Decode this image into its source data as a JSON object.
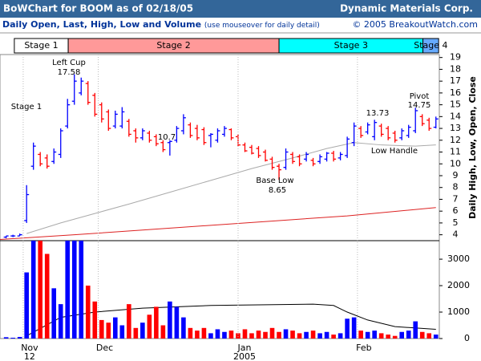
{
  "header": {
    "title": "BoWChart for BOOM as of 02/18/05",
    "company": "Dynamic Materials Corp.",
    "subtitle": "Daily Open, Last, High, Low and Volume",
    "subtitle_note": "(use mouseover for daily detail)",
    "copyright": "© 2005 BreakoutWatch.com"
  },
  "stages": [
    {
      "label": "Stage 1",
      "from": 1.2,
      "to": 9.1,
      "color": "#ffffff"
    },
    {
      "label": "Stage 2",
      "from": 9.1,
      "to": 40,
      "color": "#ff9999"
    },
    {
      "label": "Stage 3",
      "from": 40,
      "to": 61.1,
      "color": "#00ffff"
    },
    {
      "label": "Stage 4",
      "from": 61.1,
      "to": 63.4,
      "color": "#66aaff"
    }
  ],
  "chart_data": [
    {
      "type": "ohlc",
      "y_label": "Daily High, Low, Open, Close",
      "up_color": "#0000ff",
      "down_color": "#ff0000",
      "xlim": [
        -0.9,
        63.5
      ],
      "xticks": [
        {
          "value": 2.5,
          "label": "Nov",
          "sublabel": "12"
        },
        {
          "value": 13.5,
          "label": "Dec"
        },
        {
          "value": 34,
          "label": "Jan",
          "sublabel": "2005"
        },
        {
          "value": 51.5,
          "label": "Feb"
        }
      ],
      "ylim": [
        3.5,
        19.25
      ],
      "yticks": [
        4,
        5,
        6,
        7,
        8,
        9,
        10,
        11,
        12,
        13,
        14,
        15,
        16,
        17,
        18,
        19
      ],
      "high": [
        3.9,
        4.0,
        4.1,
        8.2,
        11.8,
        11.0,
        10.8,
        11.3,
        13.0,
        15.5,
        17.58,
        17.3,
        17.0,
        16.0,
        15.2,
        14.6,
        14.5,
        14.8,
        13.8,
        13.0,
        13.0,
        12.8,
        12.5,
        12.0,
        12.0,
        13.2,
        14.2,
        13.5,
        13.3,
        13.1,
        12.6,
        13.0,
        13.2,
        13.0,
        12.5,
        11.8,
        11.6,
        11.5,
        11.2,
        10.6,
        10.0,
        11.3,
        11.0,
        10.8,
        11.0,
        10.5,
        10.8,
        11.0,
        11.1,
        11.0,
        12.3,
        13.5,
        13.2,
        13.5,
        13.73,
        13.4,
        13.2,
        12.8,
        13.0,
        13.3,
        14.75,
        14.2,
        13.9,
        14.0
      ],
      "low": [
        3.7,
        3.8,
        3.9,
        5.0,
        9.5,
        9.8,
        9.6,
        10.0,
        10.5,
        13.0,
        15.0,
        15.8,
        15.0,
        14.0,
        13.5,
        12.8,
        13.0,
        13.0,
        12.3,
        11.8,
        12.0,
        11.8,
        11.5,
        11.0,
        10.7,
        11.8,
        12.5,
        12.2,
        12.0,
        11.6,
        11.4,
        11.8,
        12.3,
        12.0,
        11.5,
        11.0,
        10.8,
        10.5,
        10.2,
        9.5,
        8.65,
        9.5,
        10.0,
        9.8,
        10.2,
        9.8,
        10.0,
        10.2,
        10.2,
        10.3,
        10.5,
        11.5,
        12.2,
        12.5,
        12.0,
        12.3,
        12.0,
        11.8,
        12.0,
        12.2,
        12.6,
        13.2,
        12.8,
        13.0
      ],
      "open": [
        3.8,
        3.9,
        3.9,
        5.2,
        9.8,
        10.8,
        10.5,
        10.2,
        10.8,
        13.2,
        15.3,
        16.0,
        16.8,
        15.8,
        15.0,
        14.4,
        13.2,
        13.2,
        13.6,
        12.8,
        12.2,
        12.6,
        12.3,
        11.8,
        11.8,
        12.0,
        12.8,
        13.3,
        13.0,
        12.9,
        12.4,
        12.0,
        12.5,
        12.9,
        12.3,
        11.6,
        11.4,
        11.3,
        11.0,
        10.4,
        9.8,
        9.7,
        10.8,
        10.6,
        10.4,
        10.3,
        10.2,
        10.4,
        10.9,
        10.5,
        10.7,
        11.8,
        13.0,
        12.7,
        12.3,
        13.2,
        13.0,
        12.6,
        12.2,
        12.4,
        12.8,
        14.0,
        13.7,
        13.1
      ],
      "close": [
        3.9,
        3.9,
        4.0,
        7.4,
        11.5,
        10.0,
        9.8,
        11.0,
        12.8,
        15.0,
        17.0,
        17.0,
        15.2,
        14.2,
        13.8,
        13.0,
        14.2,
        14.4,
        12.5,
        12.2,
        12.8,
        12.0,
        11.7,
        11.2,
        11.9,
        13.0,
        13.9,
        12.4,
        12.2,
        11.8,
        12.5,
        12.8,
        13.0,
        12.2,
        11.6,
        11.1,
        10.9,
        10.7,
        10.3,
        9.7,
        9.5,
        11.0,
        10.2,
        10.0,
        10.8,
        10.0,
        10.6,
        10.9,
        10.4,
        10.8,
        12.1,
        13.2,
        12.4,
        13.3,
        13.5,
        12.5,
        12.2,
        12.0,
        12.8,
        13.1,
        14.5,
        13.4,
        13.0,
        13.8
      ],
      "lines": [
        {
          "color": "#aaaaaa",
          "x": [
            3,
            8,
            13,
            18,
            24,
            30,
            36,
            42,
            47,
            51,
            55,
            60,
            63
          ],
          "values": [
            4.1,
            5.0,
            5.8,
            6.6,
            7.6,
            8.6,
            9.6,
            10.5,
            11.3,
            11.8,
            11.6,
            11.5,
            11.6
          ]
        },
        {
          "color": "#dd2222",
          "x": [
            -0.9,
            10,
            20,
            30,
            40,
            50,
            63
          ],
          "values": [
            3.6,
            4.0,
            4.4,
            4.8,
            5.2,
            5.6,
            6.3
          ]
        }
      ],
      "annotations": [
        "Stage 1",
        "Left Cup",
        "17.58",
        "10.7",
        "Base Low",
        "8.65",
        "13.73",
        "Pivot",
        "14.75",
        "Low Handle"
      ]
    },
    {
      "type": "volume",
      "ylim": [
        0,
        3700
      ],
      "yticks": [
        0,
        1000,
        2000,
        3000
      ],
      "values": [
        50,
        30,
        60,
        2500,
        3700,
        3700,
        3200,
        1900,
        1300,
        3700,
        3700,
        3700,
        2000,
        1400,
        700,
        600,
        800,
        500,
        1300,
        400,
        600,
        900,
        1200,
        500,
        1400,
        1200,
        800,
        400,
        300,
        400,
        200,
        350,
        250,
        300,
        200,
        350,
        200,
        300,
        250,
        400,
        250,
        350,
        300,
        200,
        250,
        300,
        200,
        250,
        150,
        200,
        750,
        800,
        300,
        250,
        300,
        200,
        150,
        100,
        250,
        300,
        650,
        250,
        200,
        150
      ],
      "average": {
        "color": "#000000",
        "x": [
          3,
          8,
          13,
          20,
          30,
          45,
          48,
          50,
          53,
          57,
          63
        ],
        "values": [
          100,
          800,
          1000,
          1150,
          1250,
          1300,
          1250,
          1000,
          700,
          450,
          350
        ]
      }
    }
  ]
}
